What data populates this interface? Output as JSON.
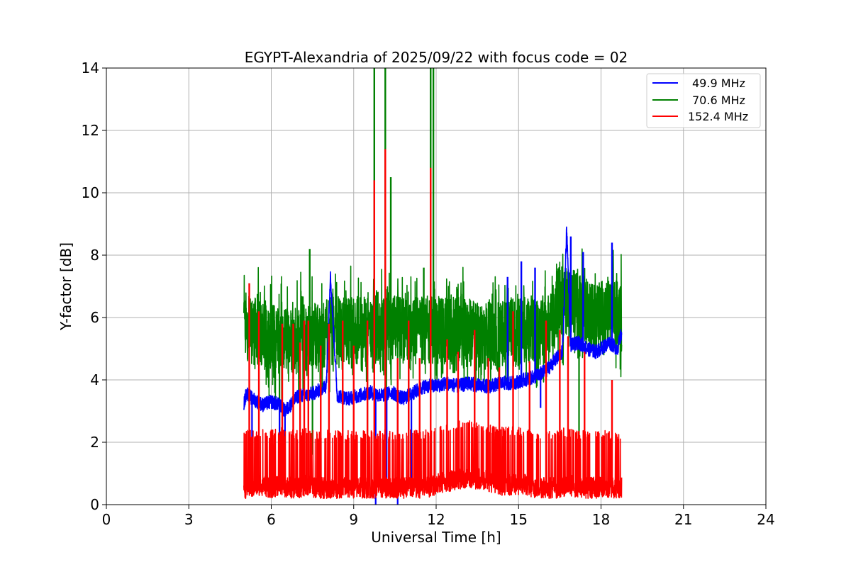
{
  "chart_data": {
    "type": "line",
    "title": "EGYPT-Alexandria of 2025/09/22 with focus code = 02",
    "xlabel": "Universal Time [h]",
    "ylabel": "Y-factor [dB]",
    "xlim": [
      0,
      24
    ],
    "ylim": [
      0,
      14
    ],
    "xticks": [
      0,
      3,
      6,
      9,
      12,
      15,
      18,
      21,
      24
    ],
    "yticks": [
      0,
      2,
      4,
      6,
      8,
      10,
      12,
      14
    ],
    "grid": true,
    "legend_position": "top-right",
    "series": [
      {
        "name": "49.9 MHz",
        "color": "#0000ff",
        "x": [
          5.0,
          5.1,
          5.3,
          5.5,
          5.7,
          6.0,
          6.3,
          6.5,
          6.8,
          7.0,
          7.3,
          7.6,
          8.0,
          8.15,
          8.4,
          8.8,
          9.2,
          9.6,
          10.0,
          10.4,
          10.8,
          11.2,
          11.6,
          12.0,
          12.4,
          12.8,
          13.2,
          13.6,
          14.0,
          14.4,
          14.8,
          15.2,
          15.6,
          16.0,
          16.3,
          16.6,
          16.75,
          16.9,
          17.2,
          17.5,
          17.8,
          18.0,
          18.3,
          18.6,
          18.75
        ],
        "y": [
          3.2,
          3.6,
          3.4,
          3.3,
          3.2,
          3.3,
          3.2,
          3.0,
          3.3,
          3.5,
          3.5,
          3.6,
          3.8,
          7.4,
          3.5,
          3.4,
          3.5,
          3.6,
          3.5,
          3.6,
          3.4,
          3.6,
          3.8,
          3.8,
          3.9,
          3.8,
          3.9,
          3.8,
          3.8,
          3.9,
          3.9,
          4.0,
          4.1,
          4.3,
          4.6,
          4.9,
          8.9,
          5.1,
          5.2,
          5.0,
          4.9,
          5.0,
          5.2,
          5.0,
          5.5
        ],
        "spikes": [
          [
            8.15,
            7.4
          ],
          [
            14.6,
            7.3
          ],
          [
            15.1,
            7.8
          ],
          [
            15.6,
            7.6
          ],
          [
            16.75,
            8.9
          ],
          [
            16.9,
            8.6
          ],
          [
            17.35,
            8.1
          ],
          [
            18.4,
            8.4
          ]
        ],
        "dips": [
          [
            5.3,
            2.0
          ],
          [
            6.3,
            1.4
          ],
          [
            6.5,
            1.1
          ],
          [
            9.8,
            0.0
          ],
          [
            10.2,
            0.8
          ],
          [
            10.6,
            0.0
          ],
          [
            11.1,
            0.7
          ],
          [
            15.8,
            3.1
          ]
        ]
      },
      {
        "name": "70.6 MHz",
        "color": "#008000",
        "x": [
          5.0,
          5.3,
          5.6,
          6.0,
          6.3,
          6.6,
          7.0,
          7.3,
          7.6,
          8.0,
          8.4,
          8.8,
          9.2,
          9.6,
          10.0,
          10.4,
          10.8,
          11.2,
          11.6,
          12.0,
          12.4,
          12.8,
          13.2,
          13.6,
          14.0,
          14.4,
          14.8,
          15.2,
          15.6,
          16.0,
          16.2,
          16.4,
          16.8,
          17.2,
          17.5,
          17.8,
          18.2,
          18.5,
          18.75
        ],
        "y": [
          5.8,
          5.6,
          5.5,
          5.4,
          5.3,
          5.3,
          5.3,
          5.4,
          5.4,
          5.5,
          5.6,
          5.6,
          5.6,
          5.6,
          5.6,
          5.6,
          5.6,
          5.6,
          5.6,
          5.6,
          5.6,
          5.6,
          5.5,
          5.4,
          5.4,
          5.5,
          5.5,
          5.6,
          5.6,
          5.6,
          5.7,
          6.5,
          6.5,
          6.4,
          6.1,
          6.0,
          6.1,
          6.2,
          6.0
        ],
        "spikes": [
          [
            7.4,
            8.2
          ],
          [
            9.75,
            14.0
          ],
          [
            10.15,
            14.0
          ],
          [
            10.35,
            10.5
          ],
          [
            11.55,
            7.6
          ],
          [
            11.8,
            14.0
          ],
          [
            11.9,
            14.0
          ]
        ],
        "dips": [
          [
            6.3,
            2.0
          ],
          [
            7.5,
            1.6
          ],
          [
            9.5,
            2.0
          ],
          [
            10.6,
            0.6
          ],
          [
            11.0,
            1.3
          ],
          [
            17.2,
            2.2
          ]
        ]
      },
      {
        "name": "152.4 MHz",
        "color": "#ff0000",
        "x": [
          5.0,
          5.3,
          5.6,
          6.0,
          6.3,
          6.6,
          7.0,
          7.3,
          7.6,
          8.0,
          8.4,
          8.8,
          9.2,
          9.6,
          10.0,
          10.4,
          10.8,
          11.2,
          11.6,
          12.0,
          12.4,
          12.8,
          13.2,
          13.6,
          14.0,
          14.4,
          14.8,
          15.2,
          15.6,
          16.0,
          16.4,
          16.8,
          17.2,
          17.6,
          18.0,
          18.4,
          18.75
        ],
        "y": [
          0.5,
          0.5,
          0.6,
          0.5,
          0.6,
          0.5,
          0.5,
          0.6,
          0.5,
          0.5,
          0.5,
          0.5,
          0.5,
          0.5,
          0.5,
          0.5,
          0.5,
          0.5,
          0.5,
          0.6,
          0.7,
          0.8,
          0.8,
          0.8,
          0.7,
          0.6,
          0.6,
          0.6,
          0.5,
          0.5,
          0.5,
          0.6,
          0.5,
          0.5,
          0.5,
          0.5,
          0.5
        ],
        "spikes": [
          [
            5.2,
            7.1
          ],
          [
            5.55,
            6.2
          ],
          [
            6.4,
            5.8
          ],
          [
            6.8,
            5.8
          ],
          [
            7.05,
            5.2
          ],
          [
            7.2,
            5.9
          ],
          [
            7.35,
            5.9
          ],
          [
            7.8,
            5.1
          ],
          [
            8.1,
            5.8
          ],
          [
            8.6,
            5.9
          ],
          [
            9.0,
            5.1
          ],
          [
            9.5,
            5.9
          ],
          [
            9.75,
            10.4
          ],
          [
            10.15,
            11.4
          ],
          [
            10.6,
            4.7
          ],
          [
            11.0,
            5.9
          ],
          [
            11.4,
            4.7
          ],
          [
            11.8,
            10.8
          ],
          [
            12.4,
            5.3
          ],
          [
            12.8,
            4.9
          ],
          [
            13.4,
            5.6
          ],
          [
            13.9,
            4.7
          ],
          [
            14.3,
            4.4
          ],
          [
            14.8,
            6.2
          ],
          [
            15.4,
            4.6
          ],
          [
            16.0,
            5.9
          ],
          [
            16.5,
            5.6
          ],
          [
            16.8,
            5.4
          ],
          [
            17.4,
            4.9
          ],
          [
            18.4,
            4.0
          ]
        ],
        "dips": []
      }
    ]
  }
}
